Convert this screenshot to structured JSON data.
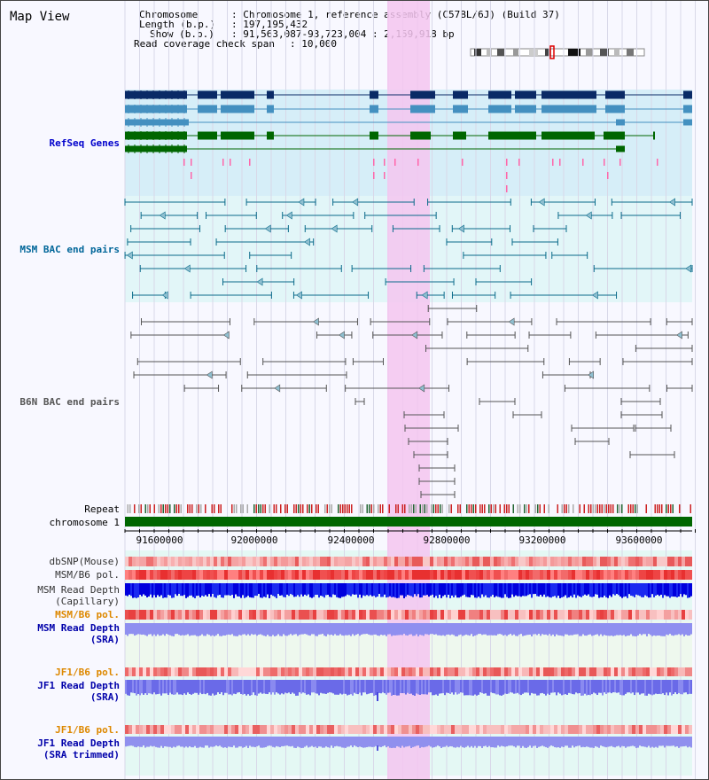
{
  "title": "Map View",
  "info": {
    "chromosome_label": "Chromosome",
    "chromosome_value": ": Chromosome 1, reference assembly (C57BL/6J) (Build 37)",
    "length_label": "Length (b.p.)",
    "length_value": ": 197,195,432",
    "show_label": "Show (b.p.)",
    "show_value": ": 91,563,087-93,723,004 : 2,159,918 bp",
    "coverage_label": "Read coverage check span",
    "coverage_value": ": 10,000"
  },
  "tracks": {
    "refseq": "RefSeq Genes",
    "msm_bac": "MSM BAC end pairs",
    "b6n_bac": "B6N BAC end pairs",
    "repeat": "Repeat",
    "chromosome": "chromosome 1",
    "dbsnp": "dbSNP(Mouse)",
    "msm_b6_pol": "MSM/B6 pol.",
    "msm_read_depth_cap_1": "MSM Read Depth",
    "msm_read_depth_cap_2": "(Capillary)",
    "msm_b6_pol_2": "MSM/B6 pol.",
    "msm_read_depth_sra_1": "MSM Read Depth",
    "msm_read_depth_sra_2": "(SRA)",
    "jf1_b6_pol": "JF1/B6 pol.",
    "jf1_read_depth_1": "JF1 Read Depth",
    "jf1_read_depth_2": "(SRA)",
    "jf1_b6_pol_2": "JF1/B6 pol.",
    "jf1_read_depth_trim_1": "JF1 Read Depth",
    "jf1_read_depth_trim_2": "(SRA trimmed)"
  },
  "axis_ticks": [
    "91600000",
    "92000000",
    "92400000",
    "92800000",
    "93200000",
    "93600000"
  ],
  "colors": {
    "refseq_label": "#0000cc",
    "msm_bac_label": "#006699",
    "b6n_bac_label": "#555555",
    "orange_label": "#dd8800",
    "blue_label": "#0000aa",
    "chromosome_bar": "#006600",
    "highlight": "#f5c6f0"
  }
}
